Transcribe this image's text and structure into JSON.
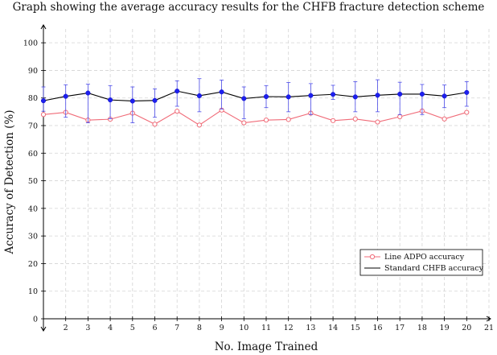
{
  "chart_data": {
    "type": "line",
    "title": "Graph showing the average accuracy results for the CHFB fracture detection scheme",
    "xlabel": "No. Image Trained",
    "ylabel": "Accuracy of Detection (%)",
    "xlim": [
      1,
      21
    ],
    "ylim": [
      0,
      105
    ],
    "x_ticks": [
      2,
      3,
      4,
      5,
      6,
      7,
      8,
      9,
      10,
      11,
      12,
      13,
      14,
      15,
      16,
      17,
      18,
      19,
      20,
      21
    ],
    "y_ticks": [
      0,
      10,
      20,
      30,
      40,
      50,
      60,
      70,
      80,
      90,
      100
    ],
    "grid": true,
    "legend_position": "bottom-right",
    "x": [
      1,
      2,
      3,
      4,
      5,
      6,
      7,
      8,
      9,
      10,
      11,
      12,
      13,
      14,
      15,
      16,
      17,
      18,
      19,
      20
    ],
    "series": [
      {
        "name": "Line ADPO accuracy",
        "color": "#f06b78",
        "marker": "open-circle",
        "values": [
          74,
          74.8,
          72,
          72.3,
          74.5,
          70.5,
          75.2,
          70.2,
          75.6,
          71,
          72,
          72.2,
          74.5,
          71.8,
          72.4,
          71.3,
          73.2,
          75.3,
          72.4,
          74.8
        ]
      },
      {
        "name": "Standard CHFB accuracy",
        "color": "#000000",
        "marker": "filled-circle",
        "marker_color": "#1d1ff0",
        "error_color": "#4a4ae8",
        "values": [
          79,
          80.6,
          81.8,
          79.3,
          78.9,
          79.1,
          82.5,
          80.8,
          82.2,
          79.8,
          80.5,
          80.4,
          80.9,
          81.3,
          80.4,
          81,
          81.4,
          81.4,
          80.7,
          82
        ],
        "error_low": [
          75.2,
          73,
          71,
          72.5,
          71,
          73,
          77,
          75,
          76,
          72.5,
          76.5,
          75,
          74,
          79.5,
          75,
          75,
          74,
          74,
          76.5,
          77
        ],
        "error_high": [
          84,
          84.8,
          85,
          84.5,
          84,
          83.3,
          86.2,
          87,
          86.5,
          84,
          84.5,
          85.6,
          85.2,
          84.6,
          85.9,
          86.6,
          85.7,
          84.9,
          84.7,
          85.9
        ]
      }
    ]
  }
}
